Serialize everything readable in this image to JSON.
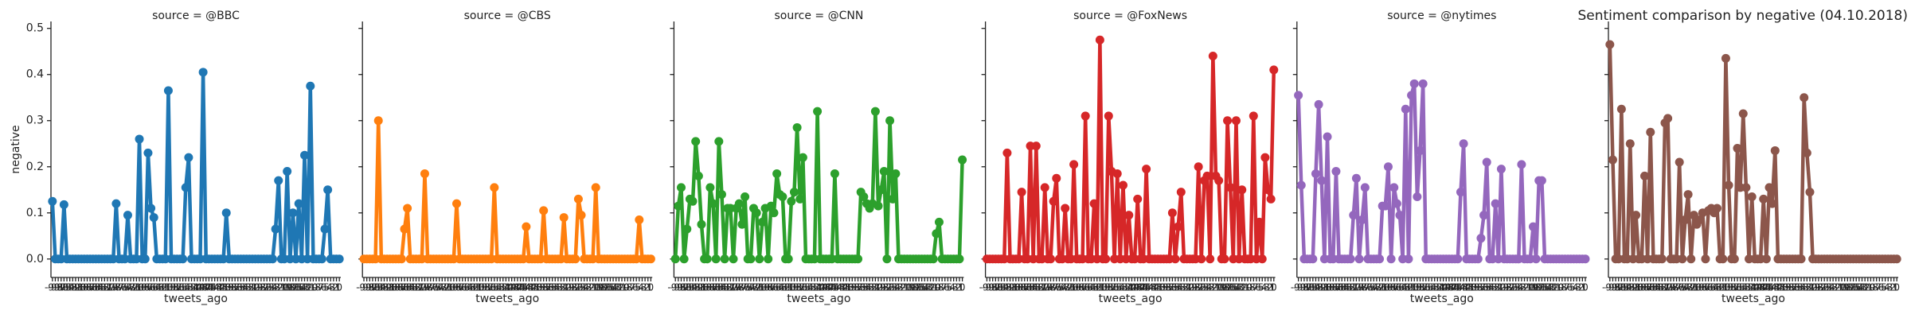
{
  "title": "Sentiment comparison by negative (04.10.2018)",
  "chart_data": [
    {
      "type": "line",
      "title": "source = @BBC",
      "x_label": "tweets_ago",
      "y_label": "negative",
      "color": "#1f77b4",
      "ylim": [
        -0.04,
        0.515
      ],
      "yticks": [
        {
          "value": 0,
          "label": "0.0"
        },
        0.1,
        0.2,
        0.3,
        0.4,
        0.5
      ],
      "categories": [
        "-99",
        "-98",
        "-97",
        "-96",
        "-95",
        "-94",
        "-93",
        "-92",
        "-91",
        "-90",
        "-89",
        "-88",
        "-87",
        "-86",
        "-85",
        "-84",
        "-83",
        "-82",
        "-81",
        "-80",
        "-79",
        "-78",
        "-77",
        "-76",
        "-75",
        "-74",
        "-73",
        "-72",
        "-71",
        "-70",
        "-69",
        "-68",
        "-67",
        "-66",
        "-65",
        "-64",
        "-63",
        "-62",
        "-61",
        "-60",
        "-59",
        "-58",
        "-57",
        "-56",
        "-55",
        "-54",
        "-53",
        "-52",
        "-51",
        "-50",
        "-49",
        "-48",
        "-47",
        "-46",
        "-45",
        "-44",
        "-43",
        "-42",
        "-41",
        "-40",
        "-39",
        "-38",
        "-37",
        "-36",
        "-35",
        "-34",
        "-33",
        "-32",
        "-31",
        "-30",
        "-29",
        "-28",
        "-27",
        "-26",
        "-25",
        "-24",
        "-23",
        "-22",
        "-21",
        "-20",
        "-19",
        "-18",
        "-17",
        "-16",
        "-15",
        "-14",
        "-13",
        "-12",
        "-11",
        "-10",
        "-9",
        "-8",
        "-7",
        "-6",
        "-5",
        "-4",
        "-3",
        "-2",
        "-1",
        "0"
      ],
      "values": [
        0.125,
        0,
        0,
        0,
        0.118,
        0,
        0,
        0,
        0,
        0,
        0,
        0,
        0,
        0,
        0,
        0,
        0,
        0,
        0,
        0,
        0,
        0,
        0.12,
        0,
        0,
        0,
        0.095,
        0,
        0,
        0,
        0.26,
        0,
        0,
        0.23,
        0.11,
        0.09,
        0,
        0,
        0,
        0,
        0.365,
        0,
        0,
        0,
        0,
        0,
        0.155,
        0.22,
        0,
        0,
        0,
        0,
        0.405,
        0,
        0,
        0,
        0,
        0,
        0,
        0,
        0.1,
        0,
        0,
        0,
        0,
        0,
        0,
        0,
        0,
        0,
        0,
        0,
        0,
        0,
        0,
        0,
        0,
        0.065,
        0.17,
        0,
        0,
        0.19,
        0,
        0.1,
        0,
        0.12,
        0,
        0.225,
        0,
        0.375,
        0,
        0,
        0,
        0,
        0.065,
        0.15,
        0,
        0,
        0,
        0
      ]
    },
    {
      "type": "line",
      "title": "source = @CBS",
      "x_label": "tweets_ago",
      "color": "#ff7f0e",
      "ylim": [
        -0.04,
        0.515
      ],
      "categories": [
        "-99",
        "-98",
        "-97",
        "-96",
        "-95",
        "-94",
        "-93",
        "-92",
        "-91",
        "-90",
        "-89",
        "-88",
        "-87",
        "-86",
        "-85",
        "-84",
        "-83",
        "-82",
        "-81",
        "-80",
        "-79",
        "-78",
        "-77",
        "-76",
        "-75",
        "-74",
        "-73",
        "-72",
        "-71",
        "-70",
        "-69",
        "-68",
        "-67",
        "-66",
        "-65",
        "-64",
        "-63",
        "-62",
        "-61",
        "-60",
        "-59",
        "-58",
        "-57",
        "-56",
        "-55",
        "-54",
        "-53",
        "-52",
        "-51",
        "-50",
        "-49",
        "-48",
        "-47",
        "-46",
        "-45",
        "-44",
        "-43",
        "-42",
        "-41",
        "-40",
        "-39",
        "-38",
        "-37",
        "-36",
        "-35",
        "-34",
        "-33",
        "-32",
        "-31",
        "-30",
        "-29",
        "-28",
        "-27",
        "-26",
        "-25",
        "-24",
        "-23",
        "-22",
        "-21",
        "-20",
        "-19",
        "-18",
        "-17",
        "-16",
        "-15",
        "-14",
        "-13",
        "-12",
        "-11",
        "-10",
        "-9",
        "-8",
        "-7",
        "-6",
        "-5",
        "-4",
        "-3",
        "-2",
        "-1",
        "0"
      ],
      "values": [
        0,
        0,
        0,
        0,
        0,
        0.3,
        0,
        0,
        0,
        0,
        0,
        0,
        0,
        0,
        0.065,
        0.11,
        0,
        0,
        0,
        0,
        0,
        0.185,
        0,
        0,
        0,
        0,
        0,
        0,
        0,
        0,
        0,
        0,
        0.12,
        0,
        0,
        0,
        0,
        0,
        0,
        0,
        0,
        0,
        0,
        0,
        0,
        0.155,
        0,
        0,
        0,
        0,
        0,
        0,
        0,
        0,
        0,
        0,
        0.07,
        0,
        0,
        0,
        0,
        0,
        0.105,
        0,
        0,
        0,
        0,
        0,
        0,
        0.09,
        0,
        0,
        0,
        0,
        0.13,
        0.095,
        0,
        0,
        0,
        0,
        0.155,
        0,
        0,
        0,
        0,
        0,
        0,
        0,
        0,
        0,
        0,
        0,
        0,
        0,
        0,
        0.085,
        0,
        0,
        0,
        0
      ]
    },
    {
      "type": "line",
      "title": "source = @CNN",
      "x_label": "tweets_ago",
      "color": "#2ca02c",
      "ylim": [
        -0.04,
        0.515
      ],
      "categories": [
        "-99",
        "-98",
        "-97",
        "-96",
        "-95",
        "-94",
        "-93",
        "-92",
        "-91",
        "-90",
        "-89",
        "-88",
        "-87",
        "-86",
        "-85",
        "-84",
        "-83",
        "-82",
        "-81",
        "-80",
        "-79",
        "-78",
        "-77",
        "-76",
        "-75",
        "-74",
        "-73",
        "-72",
        "-71",
        "-70",
        "-69",
        "-68",
        "-67",
        "-66",
        "-65",
        "-64",
        "-63",
        "-62",
        "-61",
        "-60",
        "-59",
        "-58",
        "-57",
        "-56",
        "-55",
        "-54",
        "-53",
        "-52",
        "-51",
        "-50",
        "-49",
        "-48",
        "-47",
        "-46",
        "-45",
        "-44",
        "-43",
        "-42",
        "-41",
        "-40",
        "-39",
        "-38",
        "-37",
        "-36",
        "-35",
        "-34",
        "-33",
        "-32",
        "-31",
        "-30",
        "-29",
        "-28",
        "-27",
        "-26",
        "-25",
        "-24",
        "-23",
        "-22",
        "-21",
        "-20",
        "-19",
        "-18",
        "-17",
        "-16",
        "-15",
        "-14",
        "-13",
        "-12",
        "-11",
        "-10",
        "-9",
        "-8",
        "-7",
        "-6",
        "-5",
        "-4",
        "-3",
        "-2",
        "-1",
        "0"
      ],
      "values": [
        0,
        0.115,
        0.155,
        0,
        0.065,
        0.13,
        0.125,
        0.255,
        0.18,
        0.075,
        0,
        0,
        0.155,
        0.12,
        0,
        0.255,
        0.14,
        0,
        0.11,
        0.11,
        0,
        0.11,
        0.12,
        0.075,
        0.135,
        0,
        0,
        0.11,
        0.1,
        0,
        0.08,
        0.11,
        0,
        0.115,
        0.1,
        0.185,
        0.14,
        0.135,
        0,
        0,
        0.125,
        0.145,
        0.285,
        0.13,
        0.22,
        0,
        0,
        0,
        0,
        0.32,
        0,
        0,
        0,
        0,
        0,
        0.185,
        0,
        0,
        0,
        0,
        0,
        0,
        0,
        0,
        0.145,
        0.135,
        0.12,
        0.11,
        0.12,
        0.32,
        0.115,
        0.15,
        0.19,
        0,
        0.3,
        0.13,
        0.185,
        0,
        0,
        0,
        0,
        0,
        0,
        0,
        0,
        0,
        0,
        0,
        0,
        0,
        0.055,
        0.08,
        0,
        0,
        0,
        0,
        0,
        0,
        0,
        0.215
      ]
    },
    {
      "type": "line",
      "title": "source = @FoxNews",
      "x_label": "tweets_ago",
      "color": "#d62728",
      "ylim": [
        -0.04,
        0.515
      ],
      "categories": [
        "-99",
        "-98",
        "-97",
        "-96",
        "-95",
        "-94",
        "-93",
        "-92",
        "-91",
        "-90",
        "-89",
        "-88",
        "-87",
        "-86",
        "-85",
        "-84",
        "-83",
        "-82",
        "-81",
        "-80",
        "-79",
        "-78",
        "-77",
        "-76",
        "-75",
        "-74",
        "-73",
        "-72",
        "-71",
        "-70",
        "-69",
        "-68",
        "-67",
        "-66",
        "-65",
        "-64",
        "-63",
        "-62",
        "-61",
        "-60",
        "-59",
        "-58",
        "-57",
        "-56",
        "-55",
        "-54",
        "-53",
        "-52",
        "-51",
        "-50",
        "-49",
        "-48",
        "-47",
        "-46",
        "-45",
        "-44",
        "-43",
        "-42",
        "-41",
        "-40",
        "-39",
        "-38",
        "-37",
        "-36",
        "-35",
        "-34",
        "-33",
        "-32",
        "-31",
        "-30",
        "-29",
        "-28",
        "-27",
        "-26",
        "-25",
        "-24",
        "-23",
        "-22",
        "-21",
        "-20",
        "-19",
        "-18",
        "-17",
        "-16",
        "-15",
        "-14",
        "-13",
        "-12",
        "-11",
        "-10",
        "-9",
        "-8",
        "-7",
        "-6",
        "-5",
        "-4",
        "-3",
        "-2",
        "-1",
        "0"
      ],
      "values": [
        0,
        0,
        0,
        0,
        0,
        0,
        0,
        0.23,
        0,
        0,
        0,
        0,
        0.145,
        0,
        0,
        0.245,
        0,
        0.245,
        0,
        0,
        0.155,
        0,
        0,
        0.125,
        0.175,
        0,
        0,
        0.11,
        0,
        0,
        0.205,
        0,
        0,
        0,
        0.31,
        0,
        0,
        0.12,
        0,
        0.475,
        0,
        0,
        0.31,
        0.19,
        0,
        0.185,
        0,
        0.16,
        0,
        0.095,
        0,
        0,
        0.13,
        0,
        0,
        0.195,
        0,
        0,
        0,
        0,
        0,
        0,
        0,
        0,
        0.1,
        0,
        0.07,
        0.145,
        0,
        0,
        0,
        0,
        0,
        0.2,
        0,
        0.17,
        0.18,
        0,
        0.44,
        0.18,
        0.17,
        0,
        0,
        0.3,
        0.155,
        0,
        0.3,
        0,
        0.15,
        0,
        0,
        0,
        0.31,
        0,
        0.08,
        0,
        0.22,
        0.15,
        0.13,
        0.41
      ]
    },
    {
      "type": "line",
      "title": "source = @nytimes",
      "x_label": "tweets_ago",
      "color": "#9467bd",
      "ylim": [
        -0.04,
        0.515
      ],
      "categories": [
        "-99",
        "-98",
        "-97",
        "-96",
        "-95",
        "-94",
        "-93",
        "-92",
        "-91",
        "-90",
        "-89",
        "-88",
        "-87",
        "-86",
        "-85",
        "-84",
        "-83",
        "-82",
        "-81",
        "-80",
        "-79",
        "-78",
        "-77",
        "-76",
        "-75",
        "-74",
        "-73",
        "-72",
        "-71",
        "-70",
        "-69",
        "-68",
        "-67",
        "-66",
        "-65",
        "-64",
        "-63",
        "-62",
        "-61",
        "-60",
        "-59",
        "-58",
        "-57",
        "-56",
        "-55",
        "-54",
        "-53",
        "-52",
        "-51",
        "-50",
        "-49",
        "-48",
        "-47",
        "-46",
        "-45",
        "-44",
        "-43",
        "-42",
        "-41",
        "-40",
        "-39",
        "-38",
        "-37",
        "-36",
        "-35",
        "-34",
        "-33",
        "-32",
        "-31",
        "-30",
        "-29",
        "-28",
        "-27",
        "-26",
        "-25",
        "-24",
        "-23",
        "-22",
        "-21",
        "-20",
        "-19",
        "-18",
        "-17",
        "-16",
        "-15",
        "-14",
        "-13",
        "-12",
        "-11",
        "-10",
        "-9",
        "-8",
        "-7",
        "-6",
        "-5",
        "-4",
        "-3",
        "-2",
        "-1",
        "0"
      ],
      "values": [
        0.355,
        0.16,
        0,
        0,
        0,
        0,
        0.185,
        0.335,
        0.17,
        0,
        0.265,
        0,
        0,
        0.19,
        0,
        0,
        0,
        0,
        0,
        0.095,
        0.175,
        0,
        0.085,
        0.155,
        0,
        0,
        0,
        0,
        0,
        0.115,
        0.115,
        0.2,
        0,
        0.155,
        0.12,
        0.095,
        0,
        0.325,
        0,
        0.355,
        0.38,
        0.135,
        0.235,
        0.38,
        0,
        0,
        0,
        0,
        0,
        0,
        0,
        0,
        0,
        0,
        0,
        0,
        0.145,
        0.25,
        0,
        0,
        0,
        0,
        0,
        0.045,
        0.095,
        0.21,
        0,
        0,
        0.12,
        0,
        0.195,
        0,
        0,
        0,
        0,
        0,
        0,
        0.205,
        0,
        0,
        0,
        0.07,
        0,
        0.17,
        0.17,
        0,
        0,
        0,
        0,
        0,
        0,
        0,
        0,
        0,
        0,
        0,
        0,
        0,
        0,
        0
      ]
    },
    {
      "type": "line",
      "title": "",
      "x_label": "tweets_ago",
      "color": "#8c564b",
      "ylim": [
        -0.04,
        0.515
      ],
      "categories": [
        "-99",
        "-98",
        "-97",
        "-96",
        "-95",
        "-94",
        "-93",
        "-92",
        "-91",
        "-90",
        "-89",
        "-88",
        "-87",
        "-86",
        "-85",
        "-84",
        "-83",
        "-82",
        "-81",
        "-80",
        "-79",
        "-78",
        "-77",
        "-76",
        "-75",
        "-74",
        "-73",
        "-72",
        "-71",
        "-70",
        "-69",
        "-68",
        "-67",
        "-66",
        "-65",
        "-64",
        "-63",
        "-62",
        "-61",
        "-60",
        "-59",
        "-58",
        "-57",
        "-56",
        "-55",
        "-54",
        "-53",
        "-52",
        "-51",
        "-50",
        "-49",
        "-48",
        "-47",
        "-46",
        "-45",
        "-44",
        "-43",
        "-42",
        "-41",
        "-40",
        "-39",
        "-38",
        "-37",
        "-36",
        "-35",
        "-34",
        "-33",
        "-32",
        "-31",
        "-30",
        "-29",
        "-28",
        "-27",
        "-26",
        "-25",
        "-24",
        "-23",
        "-22",
        "-21",
        "-20",
        "-19",
        "-18",
        "-17",
        "-16",
        "-15",
        "-14",
        "-13",
        "-12",
        "-11",
        "-10",
        "-9",
        "-8",
        "-7",
        "-6",
        "-5",
        "-4",
        "-3",
        "-2",
        "-1",
        "0"
      ],
      "values": [
        0.465,
        0.215,
        0,
        0,
        0.325,
        0,
        0,
        0.25,
        0,
        0.095,
        0,
        0,
        0.18,
        0,
        0.275,
        0,
        0,
        0,
        0,
        0.295,
        0.305,
        0,
        0,
        0,
        0.21,
        0,
        0.085,
        0.14,
        0,
        0.095,
        0.075,
        0.085,
        0.1,
        0,
        0.105,
        0.11,
        0.1,
        0.11,
        0,
        0,
        0.435,
        0.16,
        0,
        0,
        0.24,
        0.155,
        0.315,
        0.155,
        0,
        0.135,
        0,
        0,
        0,
        0.13,
        0,
        0.155,
        0.12,
        0.235,
        0,
        0,
        0,
        0,
        0,
        0,
        0,
        0,
        0,
        0.35,
        0.23,
        0.145,
        0,
        0,
        0,
        0,
        0,
        0,
        0,
        0,
        0,
        0,
        0,
        0,
        0,
        0,
        0,
        0,
        0,
        0,
        0,
        0,
        0,
        0,
        0,
        0,
        0,
        0,
        0,
        0,
        0,
        0
      ]
    }
  ]
}
